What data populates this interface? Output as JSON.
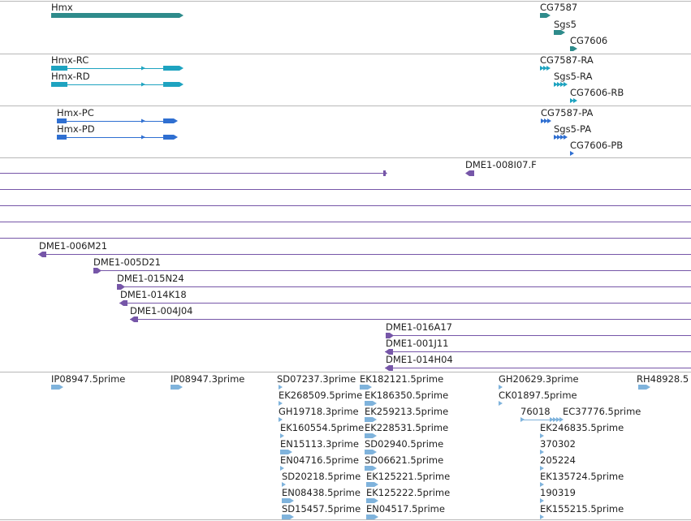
{
  "colors": {
    "gene": "#2e8b8b",
    "transcript": "#1ea3c0",
    "protein": "#2f6fd1",
    "clone": "#7656a8",
    "est": "#7fb3dc",
    "divider": "#b8b8b8",
    "text": "#222222"
  },
  "tracks": [
    {
      "name": "genes",
      "features": [
        {
          "label": "Hmx",
          "kind": "gene"
        },
        {
          "label": "CG7587",
          "kind": "gene"
        },
        {
          "label": "Sgs5",
          "kind": "gene"
        },
        {
          "label": "CG7606",
          "kind": "gene"
        }
      ]
    },
    {
      "name": "transcripts",
      "features": [
        {
          "label": "Hmx-RC",
          "kind": "transcript"
        },
        {
          "label": "Hmx-RD",
          "kind": "transcript"
        },
        {
          "label": "CG7587-RA",
          "kind": "transcript"
        },
        {
          "label": "Sgs5-RA",
          "kind": "transcript"
        },
        {
          "label": "CG7606-RB",
          "kind": "transcript"
        }
      ]
    },
    {
      "name": "proteins",
      "features": [
        {
          "label": "Hmx-PC",
          "kind": "protein"
        },
        {
          "label": "Hmx-PD",
          "kind": "protein"
        },
        {
          "label": "CG7587-PA",
          "kind": "protein"
        },
        {
          "label": "Sgs5-PA",
          "kind": "protein"
        },
        {
          "label": "CG7606-PB",
          "kind": "protein"
        }
      ]
    },
    {
      "name": "clones",
      "features": [
        {
          "label": "DME1-008I07.F",
          "kind": "clone"
        },
        {
          "label": "",
          "kind": "clone"
        },
        {
          "label": "",
          "kind": "clone"
        },
        {
          "label": "",
          "kind": "clone"
        },
        {
          "label": "DME1-006M21",
          "kind": "clone"
        },
        {
          "label": "DME1-005D21",
          "kind": "clone"
        },
        {
          "label": "DME1-015N24",
          "kind": "clone"
        },
        {
          "label": "DME1-014K18",
          "kind": "clone"
        },
        {
          "label": "DME1-004J04",
          "kind": "clone"
        },
        {
          "label": "DME1-016A17",
          "kind": "clone"
        },
        {
          "label": "DME1-001J11",
          "kind": "clone"
        },
        {
          "label": "DME1-014H04",
          "kind": "clone"
        }
      ]
    },
    {
      "name": "ests",
      "features": [
        {
          "label": "IP08947.5prime"
        },
        {
          "label": "IP08947.3prime"
        },
        {
          "label": "SD07237.3prime"
        },
        {
          "label": "EK268509.5prime"
        },
        {
          "label": "GH19718.3prime"
        },
        {
          "label": "EK160554.5prime"
        },
        {
          "label": "EN15113.3prime"
        },
        {
          "label": "EN04716.5prime"
        },
        {
          "label": "SD20218.5prime"
        },
        {
          "label": "EN08438.5prime"
        },
        {
          "label": "SD15457.5prime"
        },
        {
          "label": "EK182121.5prime"
        },
        {
          "label": "EK186350.5prime"
        },
        {
          "label": "EK259213.5prime"
        },
        {
          "label": "EK228531.5prime"
        },
        {
          "label": "SD02940.5prime"
        },
        {
          "label": "SD06621.5prime"
        },
        {
          "label": "EK125221.5prime"
        },
        {
          "label": "EK125222.5prime"
        },
        {
          "label": "EN04517.5prime"
        },
        {
          "label": "GH20629.3prime"
        },
        {
          "label": "CK01897.5prime"
        },
        {
          "label": "76018"
        },
        {
          "label": "EC37776.5prime"
        },
        {
          "label": "EK246835.5prime"
        },
        {
          "label": "370302"
        },
        {
          "label": "205224"
        },
        {
          "label": "EK135724.5prime"
        },
        {
          "label": "190319"
        },
        {
          "label": "EK155215.5prime"
        },
        {
          "label": "RH48928.5"
        }
      ]
    }
  ]
}
